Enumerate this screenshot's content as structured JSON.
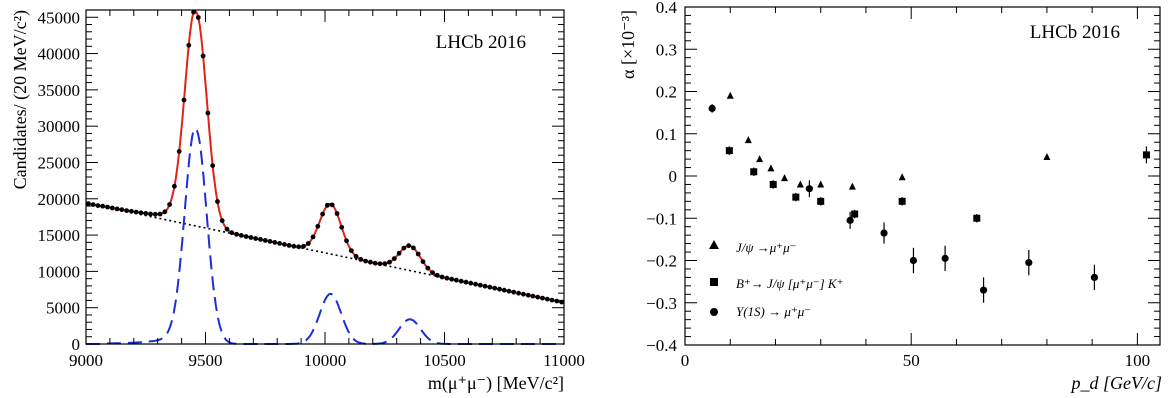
{
  "chart_data": [
    {
      "type": "line",
      "title": "",
      "annotation": "LHCb 2016",
      "xlabel": "m(μ⁺μ⁻) [MeV/c²]",
      "ylabel": "Candidates/ (20 MeV/c²)",
      "xlim": [
        9000,
        11000
      ],
      "ylim": [
        0,
        46000
      ],
      "xticks": [
        "9000",
        "9500",
        "10000",
        "10500",
        "11000"
      ],
      "yticks": [
        "0",
        "5000",
        "10000",
        "15000",
        "20000",
        "25000",
        "30000",
        "35000",
        "40000",
        "45000"
      ],
      "colors": {
        "data": "#000000",
        "fit": "#e0241b",
        "signal": "#1c2fd6",
        "background": "#000000"
      },
      "background_model": {
        "x": [
          9000,
          11000
        ],
        "y": [
          19400,
          5700
        ]
      },
      "peaks": [
        {
          "mean": 9460,
          "sigma": 45,
          "amplitude": 29500
        },
        {
          "mean": 10023,
          "sigma": 45,
          "amplitude": 6900
        },
        {
          "mean": 10355,
          "sigma": 45,
          "amplitude": 3400
        }
      ],
      "tail_amplitude": 2000
    },
    {
      "type": "scatter",
      "title": "",
      "annotation": "LHCb 2016",
      "xlabel": "p_d [GeV/c]",
      "ylabel": "α [×10⁻³]",
      "xlim": [
        0,
        105
      ],
      "ylim": [
        -0.4,
        0.4
      ],
      "xticks": [
        "0",
        "50",
        "100"
      ],
      "yticks": [
        "−0.4",
        "−0.3",
        "−0.2",
        "−0.1",
        "0",
        "0.1",
        "0.2",
        "0.3",
        "0.4"
      ],
      "legend_position": "bottom-left",
      "series": [
        {
          "name": "J/ψ →μ⁺μ⁻",
          "marker": "triangle",
          "points": [
            {
              "x": 10,
              "y": 0.19,
              "err": 0
            },
            {
              "x": 14,
              "y": 0.085,
              "err": 0
            },
            {
              "x": 16.5,
              "y": 0.04,
              "err": 0
            },
            {
              "x": 19,
              "y": 0.018,
              "err": 0
            },
            {
              "x": 22,
              "y": -0.005,
              "err": 0
            },
            {
              "x": 25.5,
              "y": -0.02,
              "err": 0
            },
            {
              "x": 30,
              "y": -0.02,
              "err": 0
            },
            {
              "x": 37,
              "y": -0.025,
              "err": 0
            },
            {
              "x": 48,
              "y": -0.003,
              "err": 0
            },
            {
              "x": 80,
              "y": 0.045,
              "err": 0
            }
          ]
        },
        {
          "name": "B⁺→ J/ψ [μ⁺μ⁻] K⁺",
          "marker": "square",
          "points": [
            {
              "x": 9.8,
              "y": 0.06,
              "err": 0.01
            },
            {
              "x": 15.2,
              "y": 0.01,
              "err": 0.01
            },
            {
              "x": 19.5,
              "y": -0.02,
              "err": 0.01
            },
            {
              "x": 24.5,
              "y": -0.05,
              "err": 0.01
            },
            {
              "x": 30,
              "y": -0.06,
              "err": 0.01
            },
            {
              "x": 37.5,
              "y": -0.09,
              "err": 0.01
            },
            {
              "x": 48,
              "y": -0.06,
              "err": 0.01
            },
            {
              "x": 64.5,
              "y": -0.1,
              "err": 0.01
            },
            {
              "x": 102,
              "y": 0.05,
              "err": 0.02
            }
          ]
        },
        {
          "name": "Υ(1S) → μ⁺μ⁻",
          "marker": "circle",
          "points": [
            {
              "x": 6,
              "y": 0.16,
              "err": 0.01
            },
            {
              "x": 27.5,
              "y": -0.03,
              "err": 0.02
            },
            {
              "x": 36.5,
              "y": -0.105,
              "err": 0.02
            },
            {
              "x": 44,
              "y": -0.135,
              "err": 0.025
            },
            {
              "x": 50.5,
              "y": -0.2,
              "err": 0.03
            },
            {
              "x": 57.5,
              "y": -0.195,
              "err": 0.03
            },
            {
              "x": 66,
              "y": -0.27,
              "err": 0.03
            },
            {
              "x": 76,
              "y": -0.205,
              "err": 0.03
            },
            {
              "x": 90.5,
              "y": -0.24,
              "err": 0.03
            }
          ]
        }
      ]
    }
  ]
}
